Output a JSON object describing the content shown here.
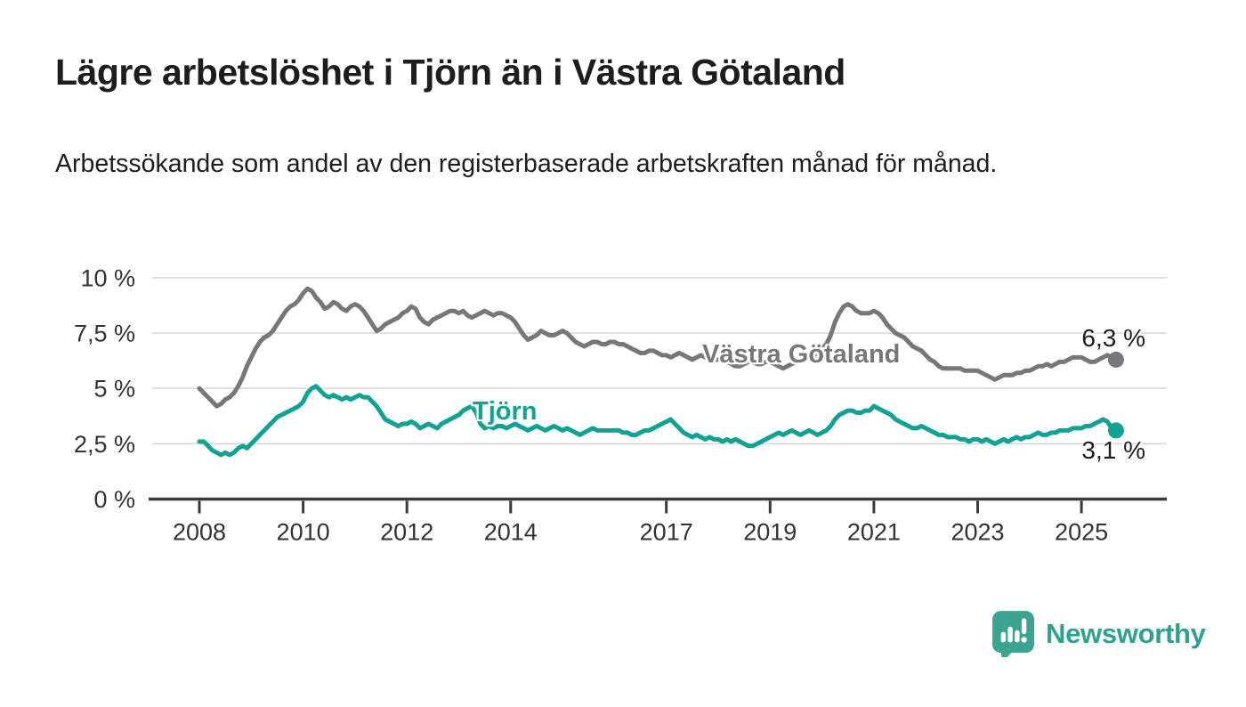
{
  "header": {
    "title": "Lägre arbetslöshet i Tjörn än i Västra Götaland",
    "subtitle": "Arbetssökande som andel av den registerbaserade arbetskraften månad för månad."
  },
  "chart_data": {
    "type": "line",
    "x_unit": "month",
    "x_start": "2008-01",
    "x_end": "2025-09",
    "ylim": [
      0,
      10
    ],
    "grid": "horizontal",
    "legend_position": "inline-labels",
    "yticks": [
      {
        "value": 0,
        "label": "0 %"
      },
      {
        "value": 2.5,
        "label": "2,5 %"
      },
      {
        "value": 5,
        "label": "5 %"
      },
      {
        "value": 7.5,
        "label": "7,5 %"
      },
      {
        "value": 10,
        "label": "10 %"
      }
    ],
    "xticks": [
      {
        "value": 2008,
        "label": "2008"
      },
      {
        "value": 2010,
        "label": "2010"
      },
      {
        "value": 2012,
        "label": "2012"
      },
      {
        "value": 2014,
        "label": "2014"
      },
      {
        "value": 2017,
        "label": "2017"
      },
      {
        "value": 2019,
        "label": "2019"
      },
      {
        "value": 2021,
        "label": "2021"
      },
      {
        "value": 2023,
        "label": "2023"
      },
      {
        "value": 2025,
        "label": "2025"
      }
    ],
    "series": [
      {
        "name": "Västra Götaland",
        "color": "#77777b",
        "end_value": 6.3,
        "end_label": "6,3 %",
        "values": [
          5.0,
          4.8,
          4.6,
          4.4,
          4.2,
          4.3,
          4.5,
          4.6,
          4.8,
          5.1,
          5.5,
          6.0,
          6.4,
          6.8,
          7.1,
          7.3,
          7.4,
          7.6,
          7.9,
          8.2,
          8.5,
          8.7,
          8.8,
          9.0,
          9.3,
          9.5,
          9.4,
          9.1,
          8.9,
          8.6,
          8.7,
          8.9,
          8.8,
          8.6,
          8.5,
          8.7,
          8.8,
          8.7,
          8.5,
          8.2,
          7.9,
          7.6,
          7.7,
          7.9,
          8.0,
          8.1,
          8.2,
          8.4,
          8.5,
          8.7,
          8.6,
          8.2,
          8.0,
          7.9,
          8.1,
          8.2,
          8.3,
          8.4,
          8.5,
          8.5,
          8.4,
          8.5,
          8.3,
          8.2,
          8.3,
          8.4,
          8.5,
          8.4,
          8.3,
          8.4,
          8.4,
          8.3,
          8.2,
          8.0,
          7.7,
          7.4,
          7.2,
          7.3,
          7.4,
          7.6,
          7.5,
          7.4,
          7.4,
          7.5,
          7.6,
          7.5,
          7.3,
          7.1,
          7.0,
          6.9,
          7.0,
          7.1,
          7.1,
          7.0,
          7.0,
          7.1,
          7.1,
          7.0,
          7.0,
          6.9,
          6.8,
          6.7,
          6.6,
          6.6,
          6.7,
          6.7,
          6.6,
          6.5,
          6.5,
          6.4,
          6.5,
          6.6,
          6.5,
          6.4,
          6.3,
          6.4,
          6.5,
          6.4,
          6.3,
          6.3,
          6.3,
          6.3,
          6.2,
          6.1,
          6.0,
          6.0,
          6.1,
          6.2,
          6.2,
          6.1,
          6.1,
          6.2,
          6.2,
          6.1,
          6.0,
          5.9,
          6.0,
          6.1,
          6.2,
          6.3,
          6.4,
          6.5,
          6.5,
          6.6,
          6.8,
          7.0,
          7.4,
          8.0,
          8.4,
          8.7,
          8.8,
          8.7,
          8.5,
          8.4,
          8.4,
          8.4,
          8.5,
          8.4,
          8.2,
          7.9,
          7.7,
          7.5,
          7.4,
          7.3,
          7.1,
          6.9,
          6.8,
          6.7,
          6.5,
          6.3,
          6.2,
          6.0,
          5.9,
          5.9,
          5.9,
          5.9,
          5.9,
          5.8,
          5.8,
          5.8,
          5.8,
          5.7,
          5.6,
          5.5,
          5.4,
          5.5,
          5.6,
          5.6,
          5.6,
          5.7,
          5.7,
          5.8,
          5.8,
          5.9,
          6.0,
          6.0,
          6.1,
          6.0,
          6.1,
          6.2,
          6.2,
          6.3,
          6.4,
          6.4,
          6.4,
          6.3,
          6.2,
          6.2,
          6.3,
          6.4,
          6.5,
          6.4,
          6.3
        ]
      },
      {
        "name": "Tjörn",
        "color": "#11a294",
        "end_value": 3.1,
        "end_label": "3,1 %",
        "values": [
          2.6,
          2.6,
          2.4,
          2.2,
          2.1,
          2.0,
          2.1,
          2.0,
          2.1,
          2.3,
          2.4,
          2.3,
          2.5,
          2.7,
          2.9,
          3.1,
          3.3,
          3.5,
          3.7,
          3.8,
          3.9,
          4.0,
          4.1,
          4.2,
          4.4,
          4.8,
          5.0,
          5.1,
          4.9,
          4.7,
          4.6,
          4.7,
          4.6,
          4.5,
          4.6,
          4.5,
          4.6,
          4.7,
          4.6,
          4.6,
          4.4,
          4.2,
          3.9,
          3.6,
          3.5,
          3.4,
          3.3,
          3.4,
          3.4,
          3.5,
          3.4,
          3.2,
          3.3,
          3.4,
          3.3,
          3.2,
          3.4,
          3.5,
          3.6,
          3.7,
          3.8,
          4.0,
          4.1,
          4.2,
          3.9,
          3.4,
          3.2,
          3.3,
          3.2,
          3.3,
          3.3,
          3.2,
          3.3,
          3.4,
          3.3,
          3.2,
          3.1,
          3.2,
          3.3,
          3.2,
          3.1,
          3.2,
          3.3,
          3.2,
          3.1,
          3.2,
          3.1,
          3.0,
          2.9,
          3.0,
          3.1,
          3.2,
          3.1,
          3.1,
          3.1,
          3.1,
          3.1,
          3.1,
          3.0,
          3.0,
          2.9,
          2.9,
          3.0,
          3.1,
          3.1,
          3.2,
          3.3,
          3.4,
          3.5,
          3.6,
          3.4,
          3.2,
          3.0,
          2.9,
          2.8,
          2.9,
          2.8,
          2.7,
          2.8,
          2.7,
          2.7,
          2.6,
          2.7,
          2.6,
          2.7,
          2.6,
          2.5,
          2.4,
          2.4,
          2.5,
          2.6,
          2.7,
          2.8,
          2.9,
          3.0,
          2.9,
          3.0,
          3.1,
          3.0,
          2.9,
          3.0,
          3.1,
          3.0,
          2.9,
          3.0,
          3.1,
          3.3,
          3.6,
          3.8,
          3.9,
          4.0,
          4.0,
          3.9,
          3.9,
          4.0,
          4.0,
          4.2,
          4.1,
          4.0,
          3.9,
          3.8,
          3.6,
          3.5,
          3.4,
          3.3,
          3.2,
          3.2,
          3.3,
          3.2,
          3.1,
          3.0,
          2.9,
          2.9,
          2.8,
          2.8,
          2.8,
          2.7,
          2.7,
          2.6,
          2.7,
          2.7,
          2.6,
          2.7,
          2.6,
          2.5,
          2.6,
          2.7,
          2.6,
          2.7,
          2.8,
          2.7,
          2.8,
          2.8,
          2.9,
          3.0,
          2.9,
          2.9,
          3.0,
          3.0,
          3.1,
          3.1,
          3.1,
          3.2,
          3.2,
          3.2,
          3.3,
          3.3,
          3.4,
          3.5,
          3.6,
          3.5,
          3.2,
          3.1
        ]
      }
    ],
    "colors": {
      "grid": "#d9d9d9",
      "axis": "#3a3a3a",
      "tick_label": "#333333",
      "title_text": "#1d1d1b",
      "brand_teal": "#2ea092",
      "brand_icon": "#3da392"
    }
  },
  "footer": {
    "brand": "Newsworthy"
  }
}
